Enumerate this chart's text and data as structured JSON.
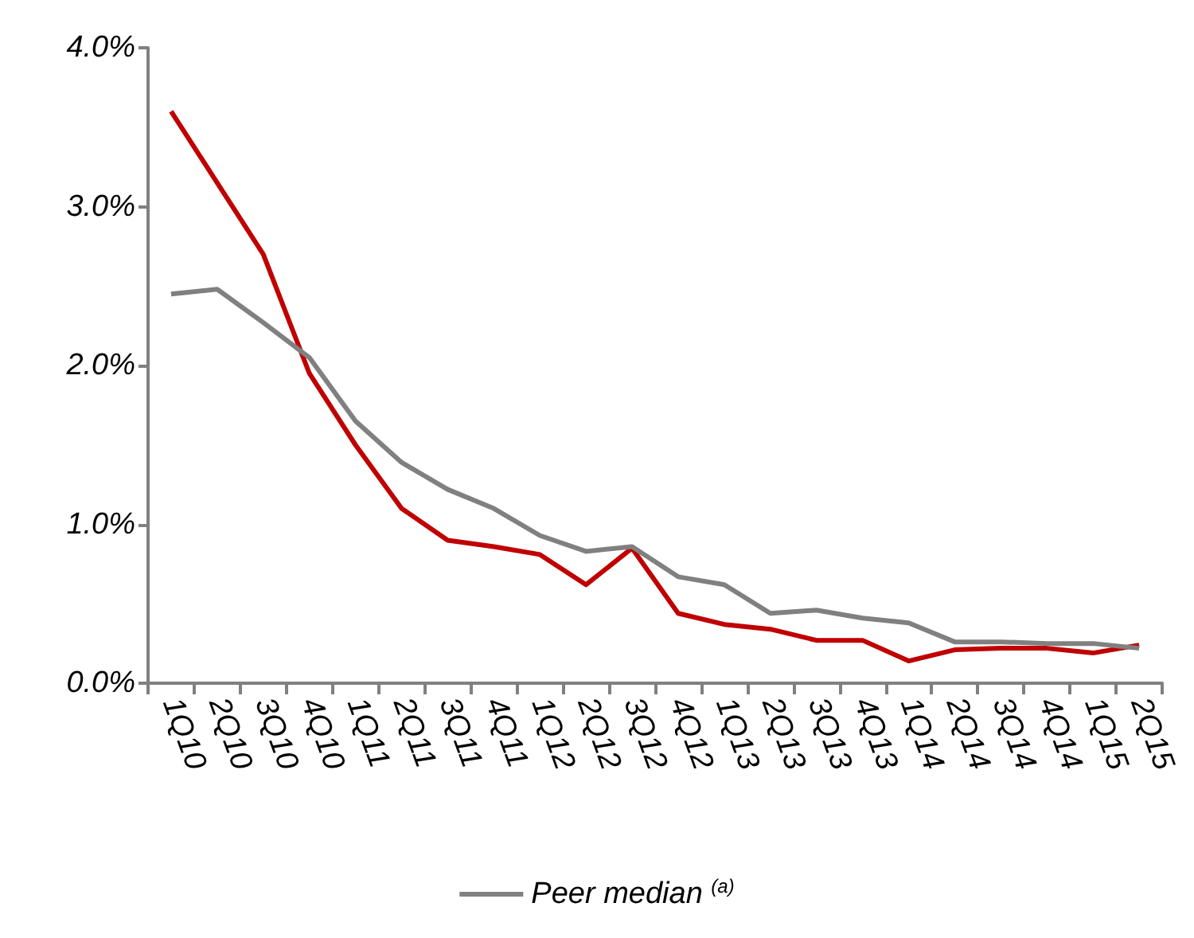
{
  "chart_data": {
    "type": "line",
    "categories": [
      "1Q10",
      "2Q10",
      "3Q10",
      "4Q10",
      "1Q11",
      "2Q11",
      "3Q11",
      "4Q11",
      "1Q12",
      "2Q12",
      "3Q12",
      "4Q12",
      "1Q13",
      "2Q13",
      "3Q13",
      "4Q13",
      "1Q14",
      "2Q14",
      "3Q14",
      "4Q14",
      "1Q15",
      "2Q15"
    ],
    "series": [
      {
        "color": "#c00000",
        "values": [
          3.6,
          3.15,
          2.7,
          1.95,
          1.5,
          1.1,
          0.9,
          0.86,
          0.81,
          0.62,
          0.85,
          0.44,
          0.37,
          0.34,
          0.27,
          0.27,
          0.14,
          0.21,
          0.22,
          0.22,
          0.19,
          0.24
        ]
      },
      {
        "name": "Peer median $^{(a)}$",
        "color": "#808080",
        "values": [
          2.45,
          2.48,
          2.27,
          2.05,
          1.65,
          1.39,
          1.22,
          1.1,
          0.93,
          0.83,
          0.86,
          0.67,
          0.62,
          0.44,
          0.46,
          0.41,
          0.38,
          0.26,
          0.26,
          0.25,
          0.25,
          0.22
        ]
      }
    ],
    "ylim": [
      0,
      4
    ],
    "yticks": [
      {
        "value": 0,
        "label": "0.0%"
      },
      {
        "value": 1,
        "label": "1.0%"
      },
      {
        "value": 2,
        "label": "2.0%"
      },
      {
        "value": 3,
        "label": "3.0%"
      },
      {
        "value": 4,
        "label": "4.0%"
      }
    ],
    "grid": false,
    "legend": "bottom",
    "marker": "none",
    "line_style": "solid"
  }
}
